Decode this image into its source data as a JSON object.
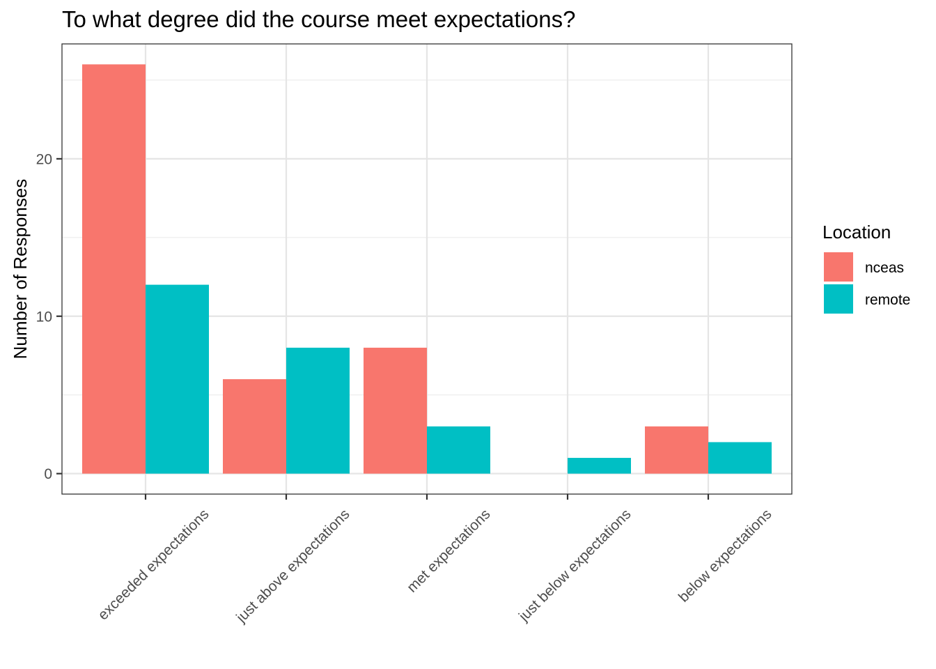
{
  "chart_data": {
    "type": "bar",
    "title": "To what degree did the course meet expectations?",
    "xlabel": "",
    "ylabel": "Number of Responses",
    "categories": [
      "exceeded expectations",
      "just above expectations",
      "met expectations",
      "just below expectations",
      "below expectations"
    ],
    "series": [
      {
        "name": "nceas",
        "color": "#F8766D",
        "values": [
          26,
          6,
          8,
          0,
          3
        ]
      },
      {
        "name": "remote",
        "color": "#00BFC4",
        "values": [
          12,
          8,
          3,
          1,
          2
        ]
      }
    ],
    "y_ticks": [
      "0",
      "10",
      "20"
    ],
    "y_tick_values": [
      0,
      10,
      20
    ],
    "ylim": [
      -1.3,
      27.3
    ],
    "grid": true,
    "legend": {
      "title": "Location",
      "position": "right"
    }
  }
}
